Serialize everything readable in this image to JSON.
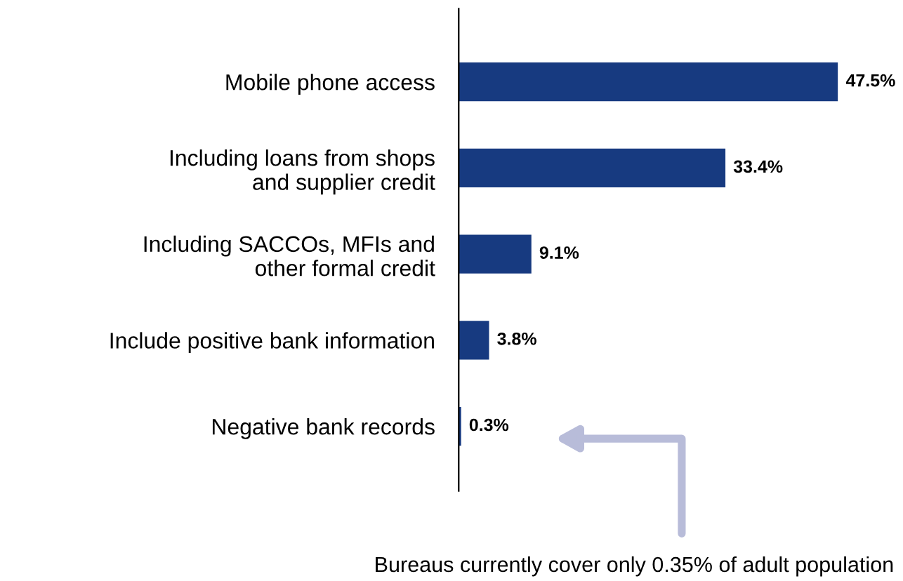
{
  "chart_data": {
    "type": "bar",
    "orientation": "horizontal",
    "categories": [
      "Mobile phone access",
      "Including loans from shops\nand supplier credit",
      "Including SACCOs, MFIs and\nother formal credit",
      "Include positive bank information",
      "Negative bank records"
    ],
    "values": [
      47.5,
      33.4,
      9.1,
      3.8,
      0.3
    ],
    "value_labels": [
      "47.5%",
      "33.4%",
      "9.1%",
      "3.8%",
      "0.3%"
    ],
    "color": "#173a80",
    "grid": false,
    "legend": false,
    "annotations": [
      "Bureaus currently cover only 0.35% of adult population"
    ]
  }
}
